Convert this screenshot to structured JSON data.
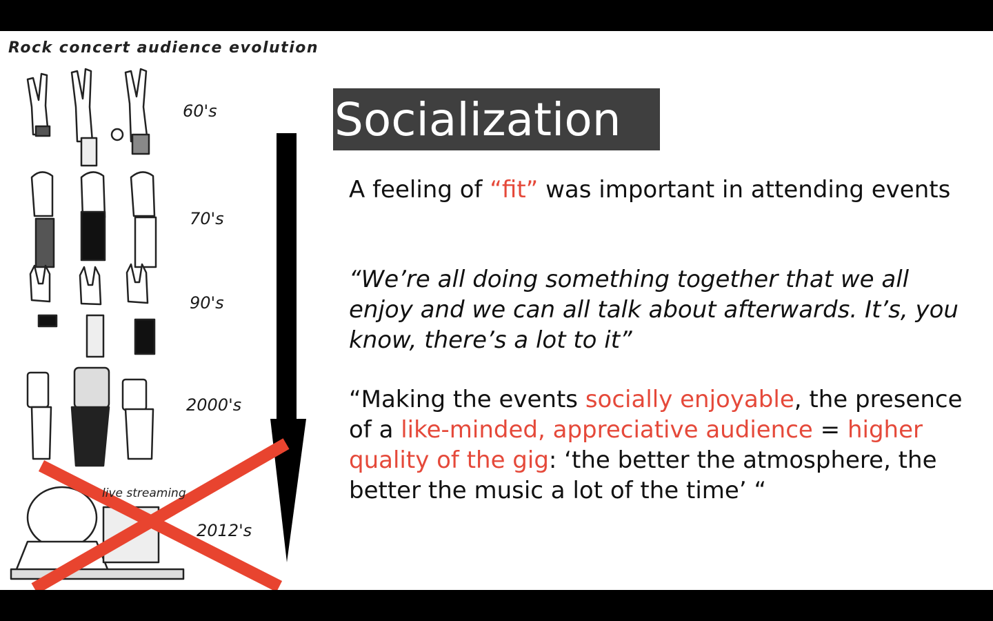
{
  "comic": {
    "title": "Rock concert audience evolution",
    "eras": [
      "60's",
      "70's",
      "90's",
      "2000's",
      "2012's"
    ],
    "stream_label": "live streaming"
  },
  "slide": {
    "title": "Socialization",
    "p1": {
      "pre": "A feeling of ",
      "highlight": "“fit”",
      "post": " was important in attending events"
    },
    "quote": "“We’re all doing something together that we all enjoy and we can all talk about afterwards. It’s, you know, there’s a lot to it”",
    "p3": {
      "s1": "“Making the events ",
      "h1": "socially enjoyable",
      "s2": ", the presence of a ",
      "h2": "like-minded, appreciative audience",
      "s3": " = ",
      "h3": "higher quality of the gig",
      "s4": ": ‘the better the atmosphere, the better the music a lot of the time’ “"
    }
  },
  "colors": {
    "accent": "#e5493a",
    "title_bg": "#3f3f3f",
    "cross": "#e8442f"
  }
}
